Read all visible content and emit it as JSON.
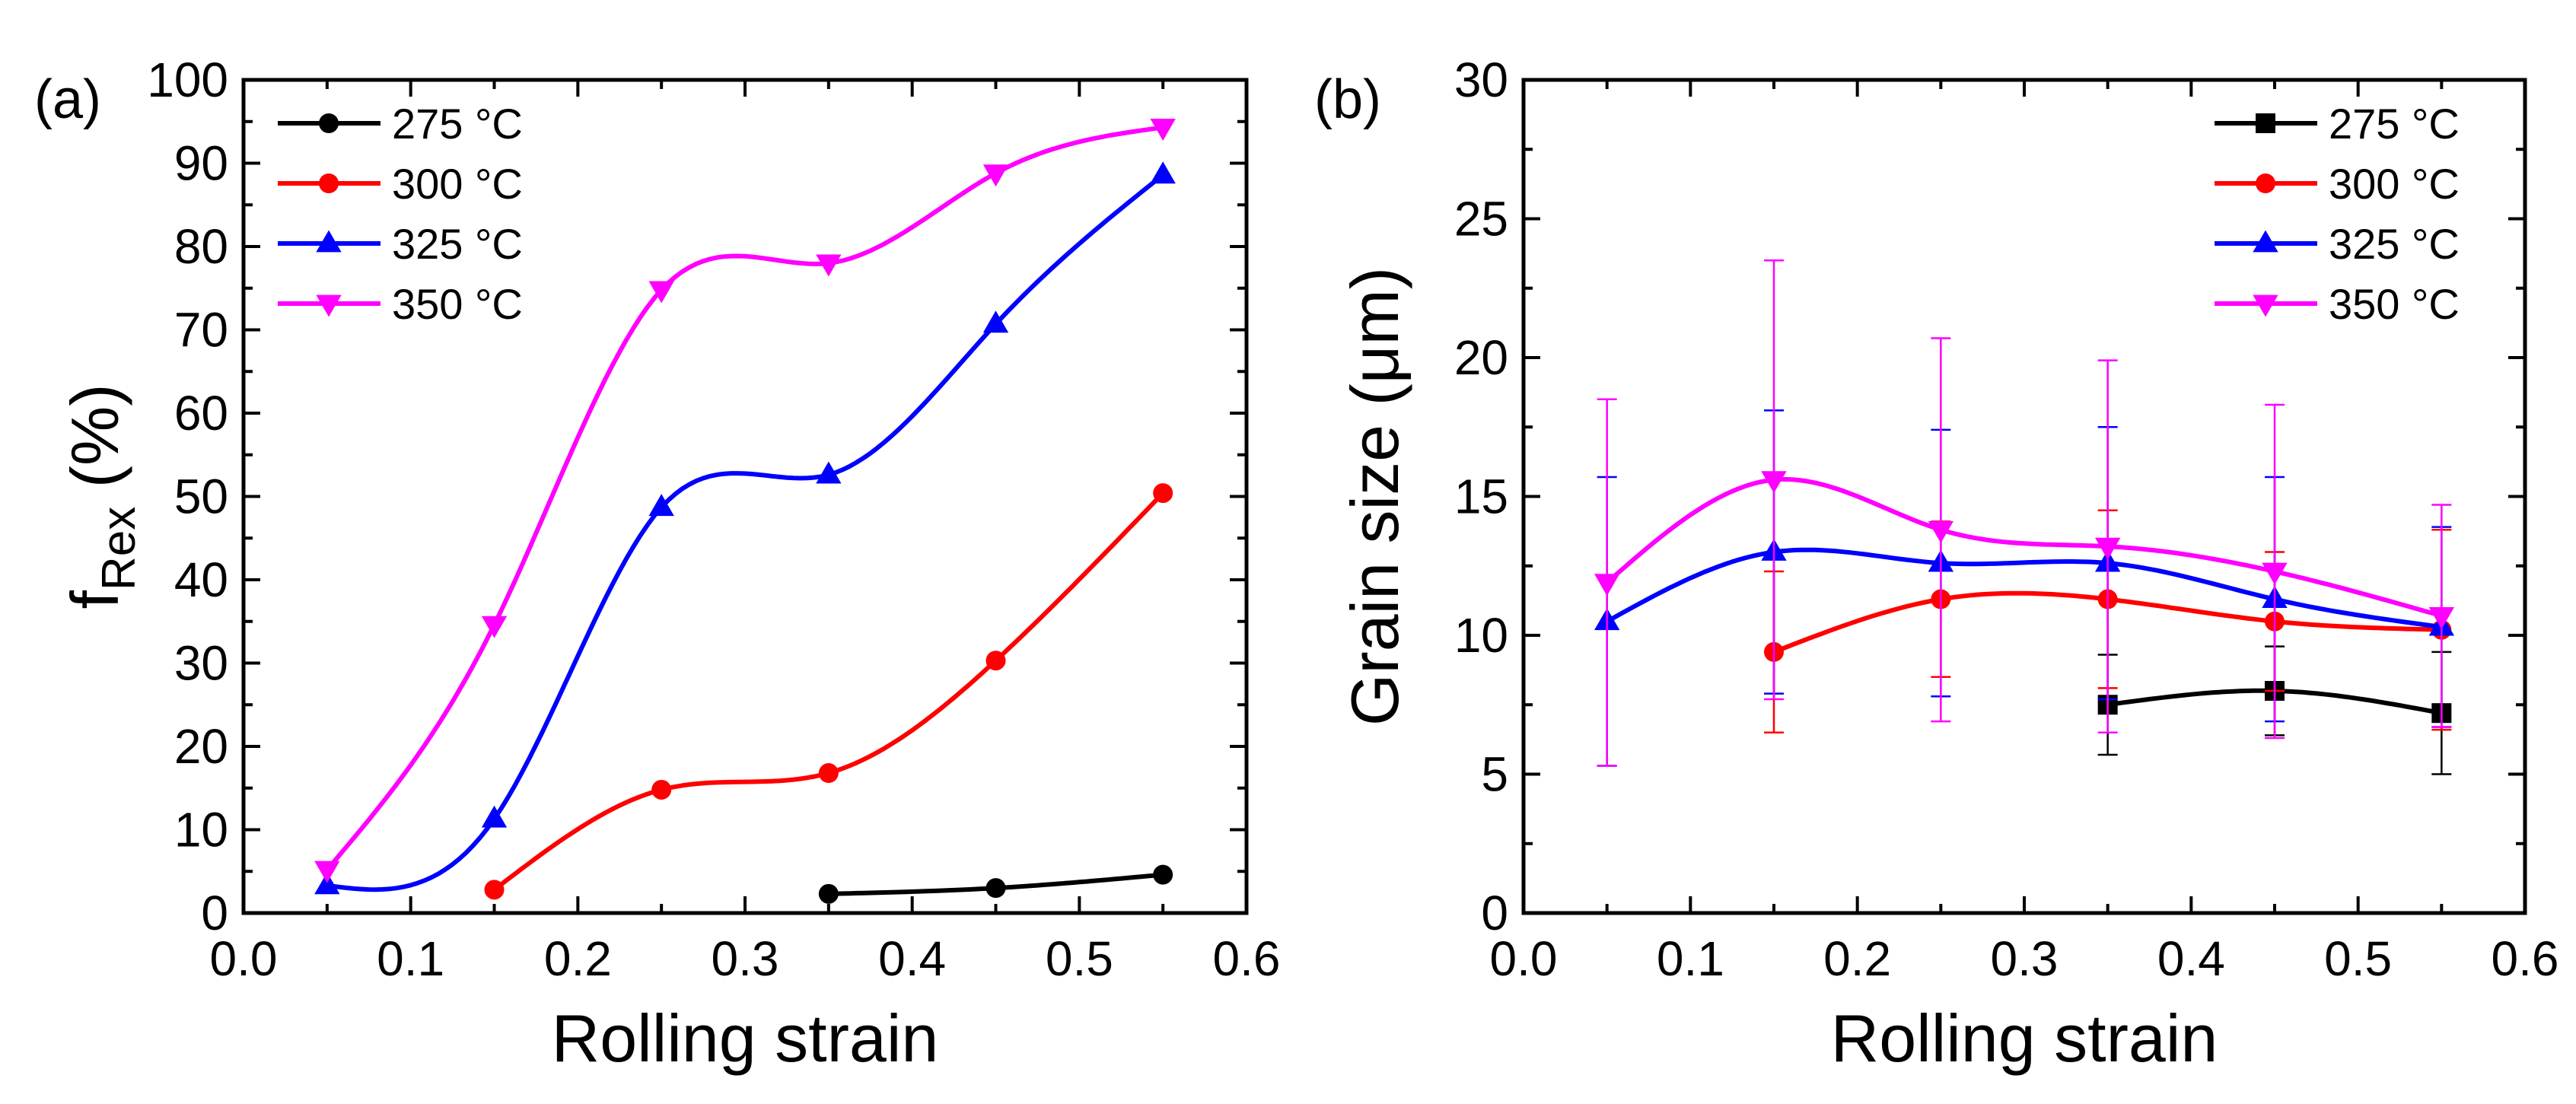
{
  "chart_data": [
    {
      "type": "scatter-line",
      "panel_label": "(a)",
      "title": "",
      "xlabel": "Rolling strain",
      "ylabel_main": "f",
      "ylabel_sub": "Rex",
      "ylabel_tail": " (%)",
      "xlim": [
        0.0,
        0.6
      ],
      "ylim": [
        0,
        100
      ],
      "xticks": [
        "0.0",
        "0.1",
        "0.2",
        "0.3",
        "0.4",
        "0.5",
        "0.6"
      ],
      "yticks": [
        "0",
        "10",
        "20",
        "30",
        "40",
        "50",
        "60",
        "70",
        "80",
        "90",
        "100"
      ],
      "legend_position": "top-left",
      "series": [
        {
          "name": "275 °C",
          "color": "#000000",
          "marker": "circle",
          "x": [
            0.35,
            0.45,
            0.55
          ],
          "y": [
            2.3,
            3.0,
            4.6
          ]
        },
        {
          "name": "300 °C",
          "color": "#ff0000",
          "marker": "circle",
          "x": [
            0.15,
            0.25,
            0.35,
            0.45,
            0.55
          ],
          "y": [
            2.8,
            14.8,
            16.8,
            30.3,
            50.4
          ]
        },
        {
          "name": "325 °C",
          "color": "#0000ff",
          "marker": "triangle-up",
          "x": [
            0.05,
            0.15,
            0.25,
            0.35,
            0.45,
            0.55
          ],
          "y": [
            3.3,
            11.3,
            48.7,
            52.6,
            70.7,
            88.6
          ]
        },
        {
          "name": "350 °C",
          "color": "#ff00ff",
          "marker": "triangle-down",
          "x": [
            0.05,
            0.15,
            0.25,
            0.35,
            0.45,
            0.55
          ],
          "y": [
            5.2,
            34.6,
            74.8,
            78.0,
            88.8,
            94.3
          ]
        }
      ]
    },
    {
      "type": "scatter-line",
      "panel_label": "(b)",
      "title": "",
      "xlabel": "Rolling strain",
      "ylabel": "Grain size (μm)",
      "xlim": [
        0.0,
        0.6
      ],
      "ylim": [
        0,
        30
      ],
      "xticks": [
        "0.0",
        "0.1",
        "0.2",
        "0.3",
        "0.4",
        "0.5",
        "0.6"
      ],
      "yticks": [
        "0",
        "5",
        "10",
        "15",
        "20",
        "25",
        "30"
      ],
      "legend_position": "top-right",
      "series": [
        {
          "name": "275 °C",
          "color": "#000000",
          "marker": "square",
          "x": [
            0.35,
            0.45,
            0.55
          ],
          "y": [
            7.5,
            8.0,
            7.2
          ],
          "err": [
            1.8,
            1.6,
            2.2
          ]
        },
        {
          "name": "300 °C",
          "color": "#ff0000",
          "marker": "circle",
          "x": [
            0.15,
            0.25,
            0.35,
            0.45,
            0.55
          ],
          "y": [
            9.4,
            11.3,
            11.3,
            10.5,
            10.2
          ],
          "err": [
            2.9,
            2.8,
            3.2,
            2.5,
            3.6
          ]
        },
        {
          "name": "325 °C",
          "color": "#0000ff",
          "marker": "triangle-up",
          "x": [
            0.05,
            0.15,
            0.25,
            0.35,
            0.45,
            0.55
          ],
          "y": [
            10.5,
            13.0,
            12.6,
            12.6,
            11.3,
            10.3
          ],
          "err": [
            5.2,
            5.1,
            4.8,
            4.9,
            4.4,
            3.6
          ]
        },
        {
          "name": "350 °C",
          "color": "#ff00ff",
          "marker": "triangle-down",
          "x": [
            0.05,
            0.15,
            0.25,
            0.35,
            0.45,
            0.55
          ],
          "y": [
            11.9,
            15.6,
            13.8,
            13.2,
            12.3,
            10.7
          ],
          "err": [
            6.6,
            7.9,
            6.9,
            6.7,
            6.0,
            4.0
          ]
        }
      ]
    }
  ]
}
